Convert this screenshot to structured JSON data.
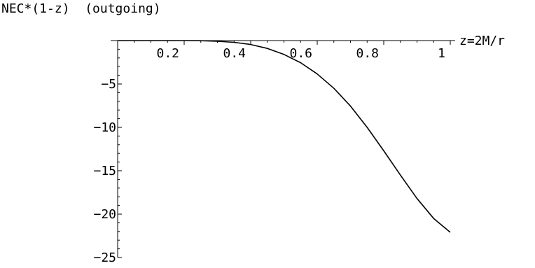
{
  "chart_data": {
    "type": "line",
    "title": "NEC*(1-z)  (outgoing)",
    "xlabel": "z=2M/r",
    "ylabel": "",
    "xlim": [
      0,
      1
    ],
    "ylim": [
      -25,
      0
    ],
    "x_ticks": [
      0.2,
      0.4,
      0.6,
      0.8,
      1
    ],
    "x_tick_labels": [
      "0.2",
      "0.4",
      "0.6",
      "0.8",
      "1"
    ],
    "y_ticks": [
      -5,
      -10,
      -15,
      -20,
      -25
    ],
    "y_tick_labels": [
      "-5",
      "-10",
      "-15",
      "-20",
      "-25"
    ],
    "grid": false,
    "legend": "none",
    "line_color": "#000000",
    "series": [
      {
        "x": [
          0.0,
          0.05,
          0.1,
          0.15,
          0.2,
          0.25,
          0.3,
          0.35,
          0.4,
          0.45,
          0.5,
          0.55,
          0.6,
          0.65,
          0.7,
          0.75,
          0.8,
          0.85,
          0.9,
          0.95,
          1.0
        ],
        "y": [
          0.0,
          0.0,
          0.0,
          0.0,
          0.0,
          -0.02,
          -0.08,
          -0.2,
          -0.45,
          -0.9,
          -1.6,
          -2.55,
          -3.85,
          -5.5,
          -7.55,
          -10.0,
          -12.7,
          -15.5,
          -18.2,
          -20.5,
          -22.1
        ]
      }
    ]
  }
}
